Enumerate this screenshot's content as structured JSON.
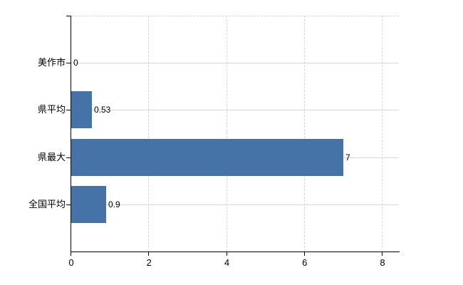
{
  "page": {
    "background_color": "#ffffff"
  },
  "chart_data": {
    "type": "bar",
    "orientation": "horizontal",
    "title": "",
    "xlabel": "",
    "ylabel": "",
    "categories": [
      "美作市",
      "県平均",
      "県最大",
      "全国平均"
    ],
    "values": [
      0,
      0.53,
      7,
      0.9
    ],
    "value_labels": [
      "0",
      "0.53",
      "7",
      "0.9"
    ],
    "x_ticks": [
      0,
      2,
      4,
      6,
      8
    ],
    "x_tick_labels": [
      "0",
      "2",
      "4",
      "6",
      "8"
    ],
    "xlim": [
      0,
      8.42
    ],
    "grid": "on",
    "legend": "none",
    "bar_color": "#4572a7",
    "gridline_color": "#d6d6d6",
    "axis_color": "#000000",
    "text_color": "#000000"
  }
}
